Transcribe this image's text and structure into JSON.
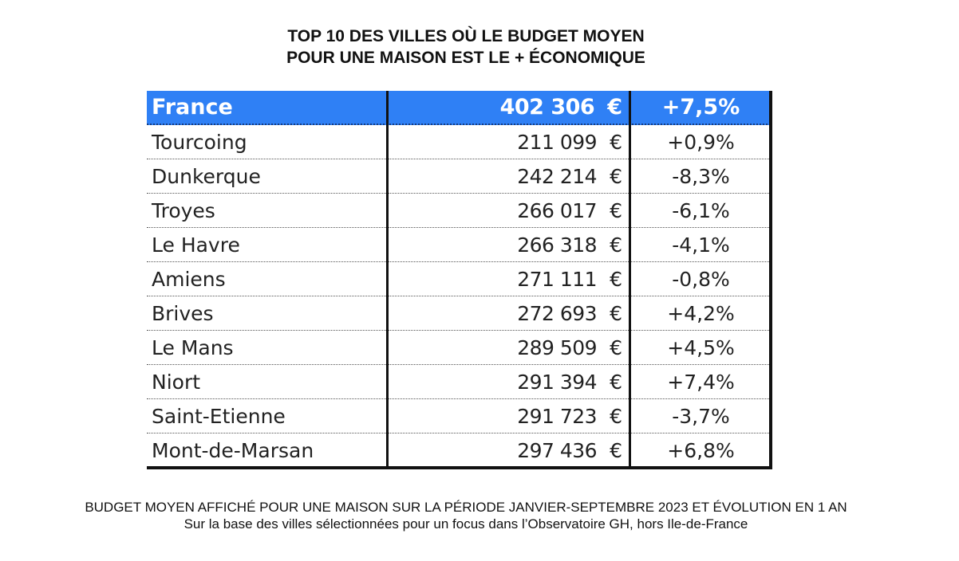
{
  "title": {
    "line1": "TOP 10 DES VILLES OÙ LE BUDGET MOYEN",
    "line2": "POUR UNE MAISON EST LE + ÉCONOMIQUE"
  },
  "currency_symbol": "€",
  "colors": {
    "header_bg": "#2f80f5",
    "header_text": "#ffffff",
    "border": "#111111"
  },
  "chart_data": {
    "type": "table",
    "title": "TOP 10 DES VILLES OÙ LE BUDGET MOYEN POUR UNE MAISON EST LE + ÉCONOMIQUE",
    "header": {
      "city": "France",
      "price": "402 306",
      "evolution": "+7,5%"
    },
    "rows": [
      {
        "city": "Tourcoing",
        "price": "211 099",
        "evolution": "+0,9%"
      },
      {
        "city": "Dunkerque",
        "price": "242 214",
        "evolution": "-8,3%"
      },
      {
        "city": "Troyes",
        "price": "266 017",
        "evolution": "-6,1%"
      },
      {
        "city": "Le Havre",
        "price": "266 318",
        "evolution": "-4,1%"
      },
      {
        "city": "Amiens",
        "price": "271 111",
        "evolution": "-0,8%"
      },
      {
        "city": "Brives",
        "price": "272 693",
        "evolution": "+4,2%"
      },
      {
        "city": "Le Mans",
        "price": "289 509",
        "evolution": "+4,5%"
      },
      {
        "city": "Niort",
        "price": "291 394",
        "evolution": "+7,4%"
      },
      {
        "city": "Saint-Etienne",
        "price": "291 723",
        "evolution": "-3,7%"
      },
      {
        "city": "Mont-de-Marsan",
        "price": "297 436",
        "evolution": "+6,8%"
      }
    ]
  },
  "footer": {
    "line1": "BUDGET MOYEN AFFICHÉ POUR UNE MAISON SUR LA PÉRIODE JANVIER-SEPTEMBRE 2023 ET ÉVOLUTION EN 1 AN",
    "line2": "Sur la base des villes sélectionnées pour un focus dans l’Observatoire GH, hors Ile-de-France"
  }
}
